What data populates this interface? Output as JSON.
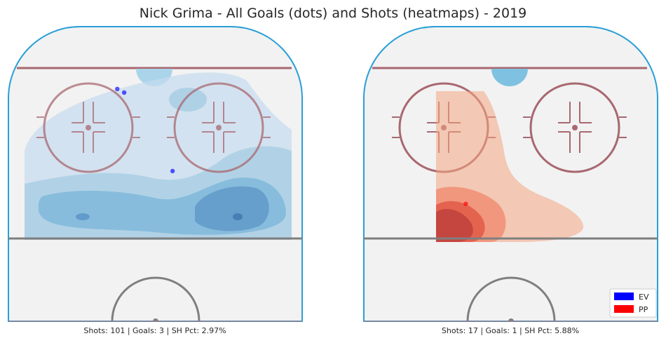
{
  "chart_data": {
    "type": "heatmap",
    "title": "Nick Grima - All Goals (dots) and Shots (heatmaps) - 2019",
    "colors": {
      "ev": "#0000ff",
      "pp": "#ff0000",
      "rink_board": "#2a9fd6",
      "blue_line": "#a86870",
      "center_line": "#7f7f7f"
    },
    "panels": [
      {
        "strength": "EV",
        "caption": "Shots: 101 | Goals: 3 | SH Pct: 2.97%",
        "shots": 101,
        "goals": 3,
        "sh_pct": 2.97,
        "heat_color": "#3a85c0",
        "goal_points": [
          [
            -11,
            82
          ],
          [
            -9,
            80
          ],
          [
            5,
            37
          ]
        ]
      },
      {
        "strength": "PP",
        "caption": "Shots: 17 | Goals: 1 | SH Pct: 5.88%",
        "shots": 17,
        "goals": 1,
        "sh_pct": 5.88,
        "heat_color": "#e8604f",
        "goal_points": [
          [
            -13,
            19
          ]
        ]
      }
    ],
    "legend": {
      "placement": "bottom-right",
      "entries": [
        {
          "label": "EV",
          "color": "#0000ff"
        },
        {
          "label": "PP",
          "color": "#ff0000"
        }
      ]
    }
  }
}
